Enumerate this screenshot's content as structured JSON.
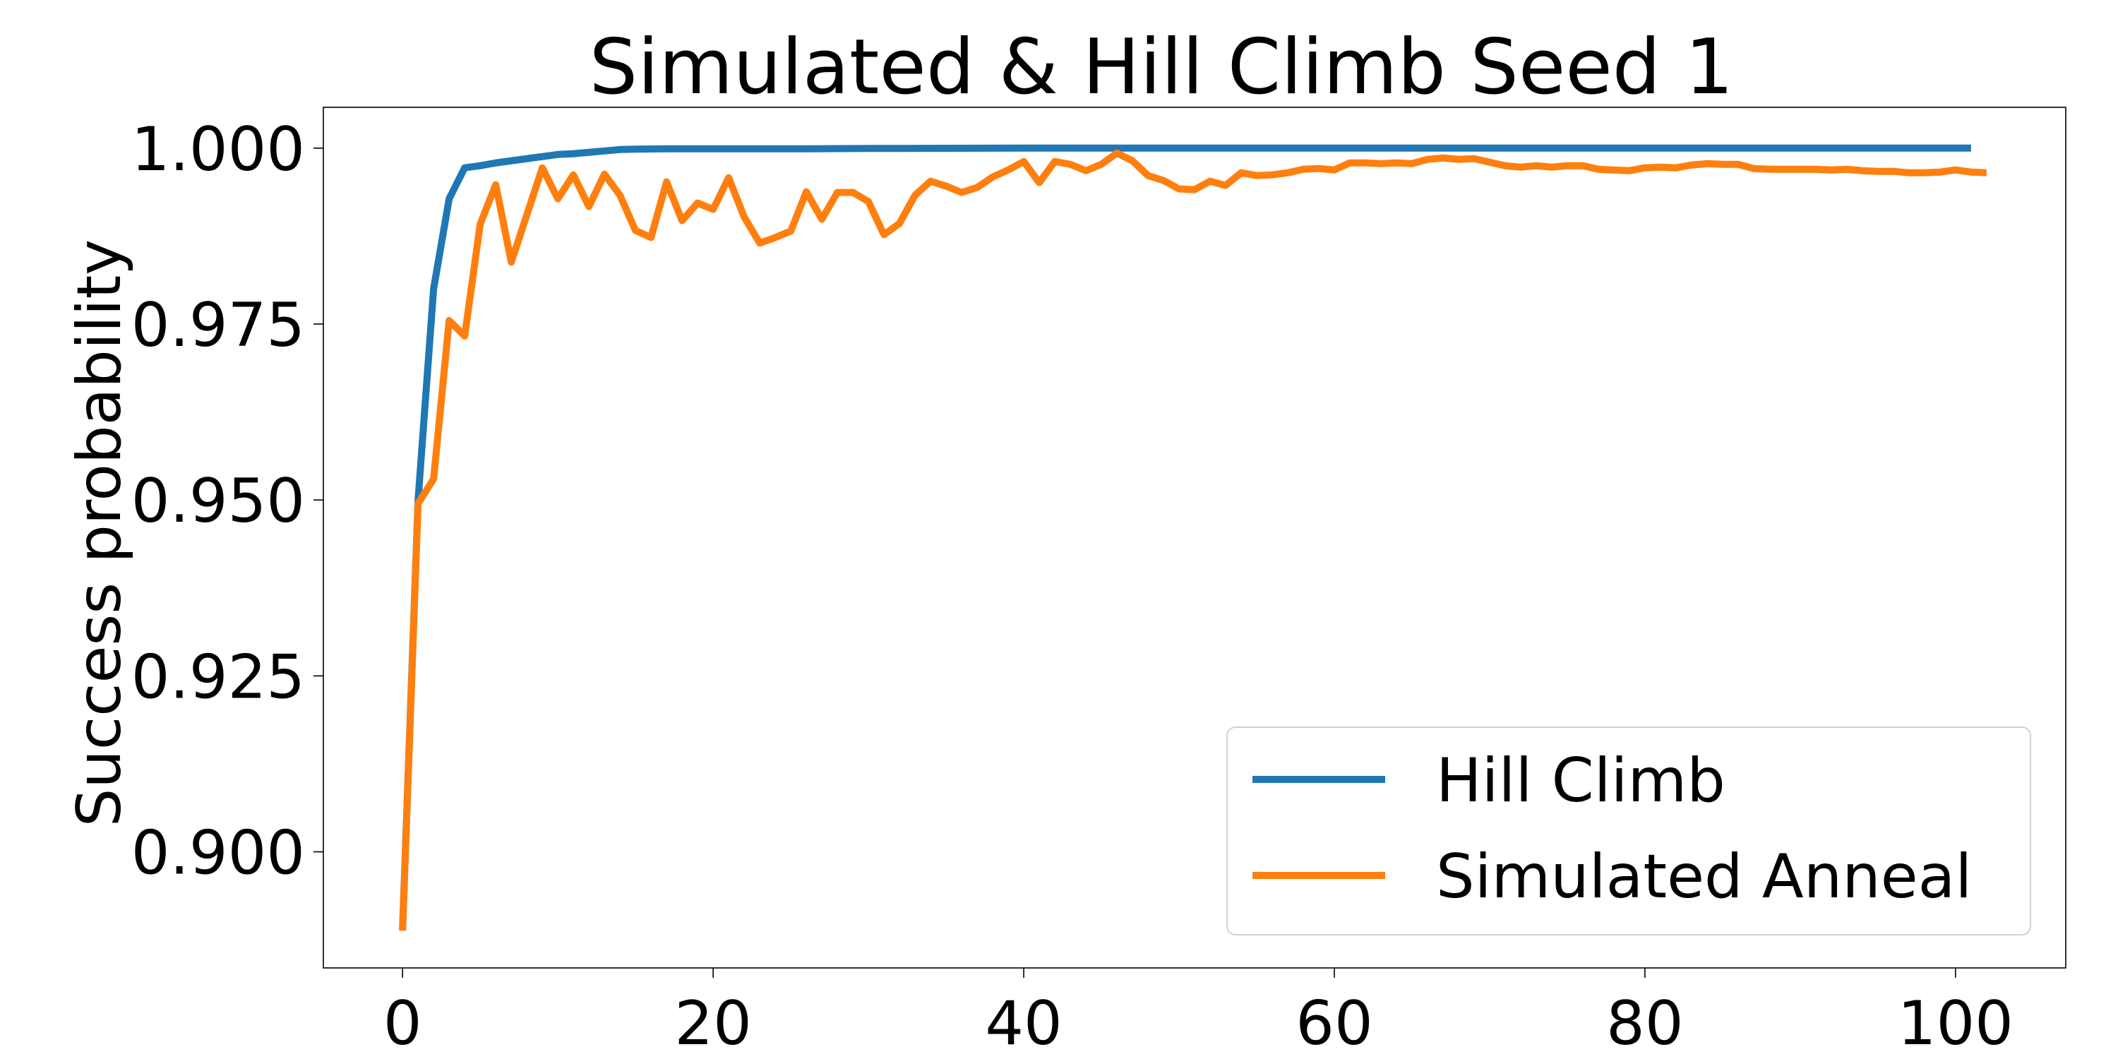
{
  "chart_data": {
    "type": "line",
    "title": "Simulated & Hill Climb Seed 1",
    "xlabel": "",
    "ylabel": "Success probability",
    "xlim": [
      -5.1,
      107.1
    ],
    "ylim": [
      0.8835,
      1.0058
    ],
    "xticks": [
      0,
      20,
      40,
      60,
      80,
      100
    ],
    "yticks": [
      0.9,
      0.925,
      0.95,
      0.975,
      1.0
    ],
    "xtick_labels": [
      "0",
      "20",
      "40",
      "60",
      "80",
      "100"
    ],
    "ytick_labels": [
      "0.900",
      "0.925",
      "0.950",
      "0.975",
      "1.000"
    ],
    "grid": false,
    "legend_position": "bottom-right",
    "series": [
      {
        "name": "Hill Climb",
        "color": "#1f77b4",
        "x": [
          0,
          1,
          2,
          3,
          4,
          5,
          6,
          7,
          8,
          9,
          10,
          11,
          12,
          13,
          14,
          15,
          16,
          17,
          18,
          19,
          20,
          25,
          30,
          40,
          50,
          60,
          70,
          80,
          90,
          101
        ],
        "y": [
          0.889,
          0.95,
          0.98,
          0.9928,
          0.9972,
          0.9975,
          0.9979,
          0.9982,
          0.9985,
          0.9988,
          0.9991,
          0.9992,
          0.9994,
          0.9996,
          0.9998,
          0.99985,
          0.99988,
          0.9999,
          0.9999,
          0.9999,
          0.9999,
          0.9999,
          0.99995,
          1.0,
          1.0,
          1.0,
          1.0,
          1.0,
          1.0,
          1.0
        ]
      },
      {
        "name": "Simulated Anneal",
        "color": "#ff7f0e",
        "x": [
          0,
          1,
          2,
          3,
          4,
          5,
          6,
          7,
          8,
          9,
          10,
          11,
          12,
          13,
          14,
          15,
          16,
          17,
          18,
          19,
          20,
          21,
          22,
          23,
          24,
          25,
          26,
          27,
          28,
          29,
          30,
          31,
          32,
          33,
          34,
          35,
          36,
          37,
          38,
          39,
          40,
          41,
          42,
          43,
          44,
          45,
          46,
          47,
          48,
          49,
          50,
          51,
          52,
          53,
          54,
          55,
          56,
          57,
          58,
          59,
          60,
          61,
          62,
          63,
          64,
          65,
          66,
          67,
          68,
          69,
          70,
          71,
          72,
          73,
          74,
          75,
          76,
          77,
          78,
          79,
          80,
          81,
          82,
          83,
          84,
          85,
          86,
          87,
          88,
          89,
          90,
          91,
          92,
          93,
          94,
          95,
          96,
          97,
          98,
          99,
          100,
          101,
          102
        ],
        "y": [
          0.8888,
          0.9495,
          0.953,
          0.9755,
          0.9733,
          0.9892,
          0.9948,
          0.9838,
          0.9905,
          0.9972,
          0.9928,
          0.9962,
          0.9917,
          0.9963,
          0.9933,
          0.9883,
          0.9873,
          0.9952,
          0.9897,
          0.9922,
          0.9913,
          0.9958,
          0.9902,
          0.9865,
          0.9873,
          0.9882,
          0.9938,
          0.9899,
          0.9937,
          0.9937,
          0.9924,
          0.9877,
          0.9893,
          0.9933,
          0.9953,
          0.9946,
          0.9937,
          0.9944,
          0.9959,
          0.9969,
          0.9981,
          0.9951,
          0.9981,
          0.9977,
          0.9968,
          0.9977,
          0.9993,
          0.9982,
          0.9961,
          0.9954,
          0.9942,
          0.9941,
          0.9953,
          0.9947,
          0.9965,
          0.9961,
          0.9962,
          0.9965,
          0.997,
          0.9971,
          0.9969,
          0.9979,
          0.9979,
          0.9978,
          0.9979,
          0.9978,
          0.9984,
          0.9986,
          0.9984,
          0.9985,
          0.998,
          0.9975,
          0.9973,
          0.9975,
          0.9973,
          0.9975,
          0.9975,
          0.997,
          0.9969,
          0.9968,
          0.9972,
          0.9973,
          0.9972,
          0.9976,
          0.9978,
          0.9977,
          0.9977,
          0.9971,
          0.997,
          0.997,
          0.997,
          0.997,
          0.9969,
          0.997,
          0.9968,
          0.9967,
          0.9967,
          0.9965,
          0.9965,
          0.9966,
          0.9969,
          0.9966,
          0.9965
        ]
      }
    ]
  }
}
